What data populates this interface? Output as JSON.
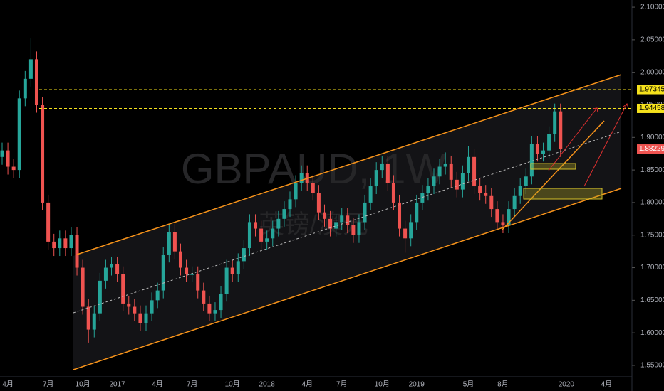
{
  "chart_data": {
    "type": "candlestick",
    "watermark": "GBPAUD, 1W",
    "watermark_subtitle": "英镑/澳元",
    "up_color": "#26a69a",
    "down_color": "#ef5350",
    "categories": [
      null,
      "4月",
      null,
      null,
      null,
      null,
      null,
      null,
      "7月",
      null,
      null,
      null,
      null,
      null,
      "10月",
      null,
      null,
      null,
      null,
      null,
      "2017",
      null,
      null,
      null,
      null,
      null,
      null,
      "4月",
      null,
      null,
      null,
      null,
      null,
      "7月",
      null,
      null,
      null,
      null,
      null,
      null,
      "10月",
      null,
      null,
      null,
      null,
      null,
      "2018",
      null,
      null,
      null,
      null,
      null,
      null,
      "4月",
      null,
      null,
      null,
      null,
      null,
      "7月",
      null,
      null,
      null,
      null,
      null,
      null,
      "10月",
      null,
      null,
      null,
      null,
      null,
      "2019",
      null,
      null,
      null,
      null,
      null,
      null,
      null,
      null,
      "5月",
      null,
      null,
      null,
      null,
      null,
      "8月",
      null,
      null,
      null,
      null,
      null,
      null,
      null,
      null,
      null,
      null,
      "2020",
      null,
      null,
      null,
      null,
      null,
      null,
      "4月"
    ],
    "open": [
      1.87,
      1.88,
      1.855,
      1.85,
      1.96,
      1.99,
      2.02,
      1.95,
      1.8,
      1.74,
      1.73,
      1.745,
      1.73,
      1.75,
      1.7,
      1.64,
      1.605,
      1.63,
      1.68,
      1.7,
      1.705,
      1.69,
      1.645,
      1.64,
      1.63,
      1.615,
      1.63,
      1.65,
      1.665,
      1.72,
      1.755,
      1.725,
      1.7,
      1.69,
      1.69,
      1.665,
      1.645,
      1.63,
      1.635,
      1.66,
      1.7,
      1.69,
      1.71,
      1.73,
      1.77,
      1.76,
      1.74,
      1.745,
      1.76,
      1.775,
      1.79,
      1.805,
      1.83,
      1.845,
      1.83,
      1.815,
      1.785,
      1.775,
      1.76,
      1.77,
      1.78,
      1.765,
      1.75,
      1.77,
      1.8,
      1.825,
      1.85,
      1.86,
      1.83,
      1.8,
      1.76,
      1.745,
      1.77,
      1.8,
      1.815,
      1.825,
      1.84,
      1.855,
      1.86,
      1.835,
      1.82,
      1.845,
      1.87,
      1.825,
      1.815,
      1.81,
      1.79,
      1.77,
      1.765,
      1.79,
      1.81,
      1.825,
      1.84,
      1.89,
      1.875,
      1.88,
      1.905,
      1.94,
      null,
      null,
      null,
      null,
      null,
      null,
      null,
      null
    ],
    "high": [
      1.892,
      1.892,
      1.867,
      1.972,
      2.002,
      2.052,
      2.032,
      1.962,
      1.812,
      1.752,
      1.757,
      1.757,
      1.762,
      1.762,
      1.712,
      1.652,
      1.642,
      1.692,
      1.712,
      1.717,
      1.717,
      1.702,
      1.657,
      1.652,
      1.642,
      1.642,
      1.662,
      1.677,
      1.732,
      1.767,
      1.767,
      1.737,
      1.712,
      1.702,
      1.702,
      1.677,
      1.657,
      1.647,
      1.672,
      1.712,
      1.712,
      1.722,
      1.742,
      1.782,
      1.782,
      1.772,
      1.757,
      1.772,
      1.787,
      1.802,
      1.817,
      1.842,
      1.857,
      1.857,
      1.842,
      1.827,
      1.797,
      1.787,
      1.782,
      1.792,
      1.792,
      1.777,
      1.782,
      1.812,
      1.837,
      1.862,
      1.872,
      1.872,
      1.842,
      1.812,
      1.772,
      1.782,
      1.812,
      1.827,
      1.837,
      1.852,
      1.867,
      1.877,
      1.872,
      1.847,
      1.857,
      1.887,
      1.882,
      1.837,
      1.827,
      1.822,
      1.802,
      1.782,
      1.802,
      1.822,
      1.837,
      1.852,
      1.902,
      1.902,
      1.892,
      1.917,
      1.952,
      1.952,
      null,
      null,
      null,
      null,
      null,
      null,
      null,
      null
    ],
    "low": [
      1.858,
      1.843,
      1.838,
      1.838,
      1.948,
      1.978,
      1.938,
      1.788,
      1.728,
      1.718,
      1.718,
      1.718,
      1.718,
      1.688,
      1.628,
      1.585,
      1.593,
      1.618,
      1.668,
      1.688,
      1.678,
      1.633,
      1.628,
      1.618,
      1.603,
      1.603,
      1.618,
      1.638,
      1.653,
      1.708,
      1.713,
      1.688,
      1.678,
      1.678,
      1.653,
      1.633,
      1.618,
      1.618,
      1.623,
      1.648,
      1.678,
      1.678,
      1.698,
      1.718,
      1.748,
      1.728,
      1.728,
      1.733,
      1.748,
      1.763,
      1.778,
      1.793,
      1.818,
      1.818,
      1.803,
      1.773,
      1.763,
      1.748,
      1.748,
      1.758,
      1.753,
      1.738,
      1.738,
      1.758,
      1.788,
      1.813,
      1.838,
      1.818,
      1.788,
      1.748,
      1.723,
      1.733,
      1.758,
      1.788,
      1.803,
      1.813,
      1.828,
      1.843,
      1.823,
      1.808,
      1.808,
      1.833,
      1.813,
      1.803,
      1.798,
      1.778,
      1.758,
      1.753,
      1.753,
      1.778,
      1.798,
      1.813,
      1.828,
      1.863,
      1.863,
      1.868,
      1.893,
      1.87,
      null,
      null,
      null,
      null,
      null,
      null,
      null,
      null
    ],
    "close": [
      1.88,
      1.855,
      1.85,
      1.96,
      1.99,
      2.02,
      1.95,
      1.8,
      1.74,
      1.73,
      1.745,
      1.73,
      1.75,
      1.7,
      1.64,
      1.605,
      1.63,
      1.68,
      1.7,
      1.705,
      1.69,
      1.645,
      1.64,
      1.63,
      1.615,
      1.63,
      1.65,
      1.665,
      1.72,
      1.755,
      1.725,
      1.7,
      1.69,
      1.69,
      1.665,
      1.645,
      1.63,
      1.635,
      1.66,
      1.7,
      1.69,
      1.71,
      1.73,
      1.77,
      1.76,
      1.74,
      1.745,
      1.76,
      1.775,
      1.79,
      1.805,
      1.83,
      1.845,
      1.83,
      1.815,
      1.785,
      1.775,
      1.76,
      1.77,
      1.78,
      1.765,
      1.75,
      1.77,
      1.8,
      1.825,
      1.85,
      1.86,
      1.83,
      1.8,
      1.76,
      1.745,
      1.77,
      1.8,
      1.815,
      1.825,
      1.84,
      1.855,
      1.86,
      1.835,
      1.82,
      1.845,
      1.87,
      1.825,
      1.815,
      1.81,
      1.79,
      1.77,
      1.765,
      1.79,
      1.81,
      1.825,
      1.84,
      1.89,
      1.875,
      1.88,
      1.905,
      1.94,
      1.882,
      null,
      null,
      null,
      null,
      null,
      null,
      null,
      null
    ],
    "ylim": [
      1.5325,
      2.111
    ],
    "yticks": [
      {
        "value": 1.55,
        "label": "1.55000"
      },
      {
        "value": 1.6,
        "label": "1.60000"
      },
      {
        "value": 1.65,
        "label": "1.65000"
      },
      {
        "value": 1.7,
        "label": "1.70000"
      },
      {
        "value": 1.75,
        "label": "1.75000"
      },
      {
        "value": 1.8,
        "label": "1.80000"
      },
      {
        "value": 1.85,
        "label": "1.85000"
      },
      {
        "value": 1.9,
        "label": "1.90000"
      },
      {
        "value": 1.95,
        "label": "1.95000"
      },
      {
        "value": 2.0,
        "label": "2.00000"
      },
      {
        "value": 2.05,
        "label": "2.05000"
      },
      {
        "value": 2.1,
        "label": "2.10000"
      }
    ],
    "levels": [
      {
        "price": 1.97345,
        "color": "#f5e11c",
        "style": "dashed"
      },
      {
        "price": 1.94458,
        "color": "#f5e11c",
        "style": "dashed"
      },
      {
        "price": 1.88229,
        "color": "#ef5350",
        "style": "solid"
      }
    ]
  }
}
